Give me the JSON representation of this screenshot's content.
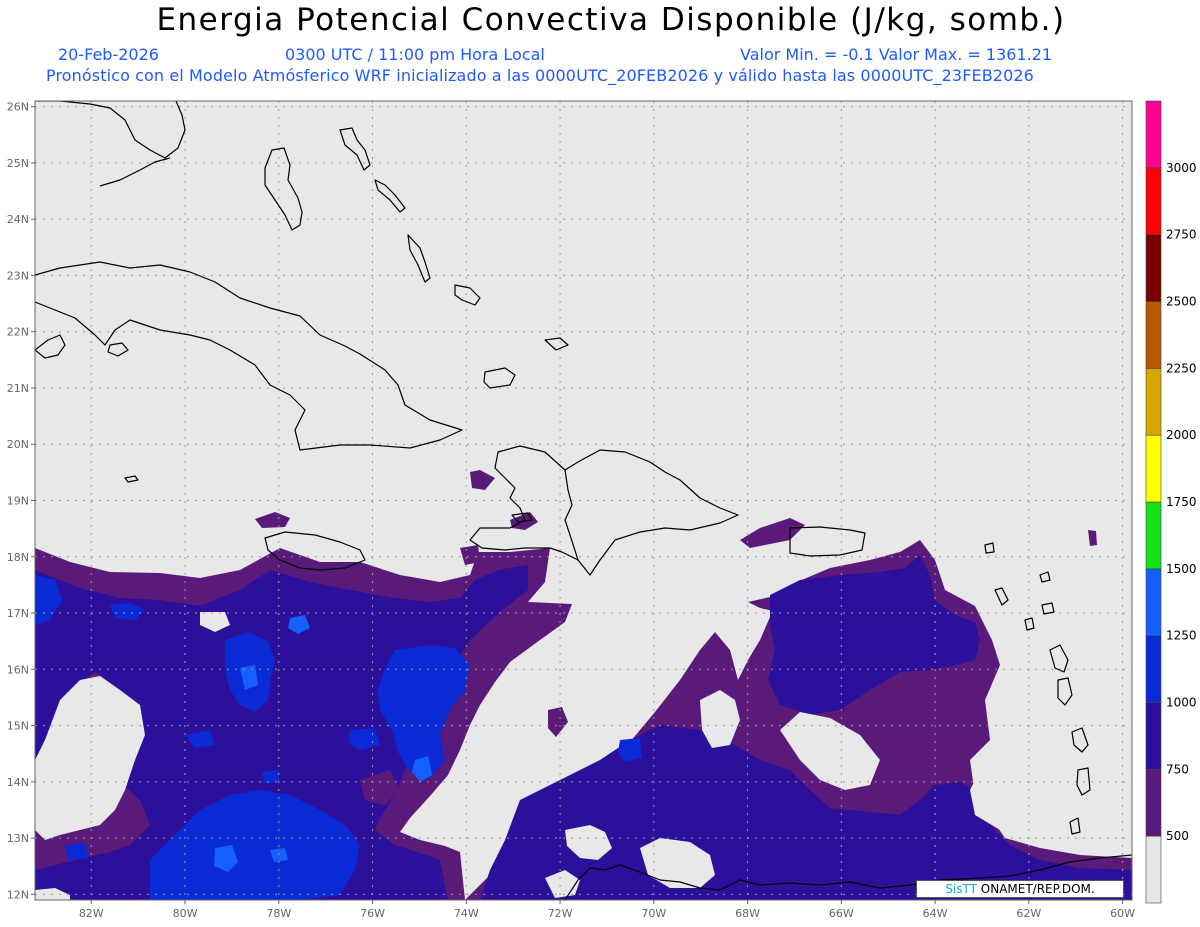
{
  "header": {
    "title": "Energia Potencial Convectiva Disponible (J/kg, somb.)",
    "date": "20-Feb-2026",
    "time": "0300 UTC / 11:00 pm Hora Local",
    "minmax": "Valor Min. = -0.1  Valor Max. = 1361.21",
    "model_line": "Pronóstico con el Modelo Atmósferico WRF inicializado a las 0000UTC_20FEB2026 y válido hasta las  0000UTC_23FEB2026"
  },
  "map": {
    "lon_range": [
      -83.2,
      -59.8
    ],
    "lat_range": [
      11.9,
      26.1
    ],
    "lat_ticks": [
      "26N",
      "25N",
      "24N",
      "23N",
      "22N",
      "21N",
      "20N",
      "19N",
      "18N",
      "17N",
      "16N",
      "15N",
      "14N",
      "13N",
      "12N"
    ],
    "lon_ticks": [
      "82W",
      "80W",
      "78W",
      "76W",
      "74W",
      "72W",
      "70W",
      "68W",
      "66W",
      "64W",
      "62W",
      "60W"
    ],
    "grid": true,
    "background_color": "#e8e8e8",
    "coastline_color": "#000000"
  },
  "colorbar": {
    "labels": [
      "500",
      "750",
      "1000",
      "1250",
      "1500",
      "1750",
      "2000",
      "2250",
      "2500",
      "2750",
      "3000"
    ],
    "colors": [
      "#e6e6e6",
      "#5a1a7a",
      "#2c0f9a",
      "#0a2ad6",
      "#1460ff",
      "#15e01a",
      "#ffff00",
      "#d7a500",
      "#b45a00",
      "#7a0000",
      "#ff0000",
      "#ff0090"
    ]
  },
  "credit": {
    "brand": "SisTT",
    "text": " ONAMET/REP.DOM."
  }
}
